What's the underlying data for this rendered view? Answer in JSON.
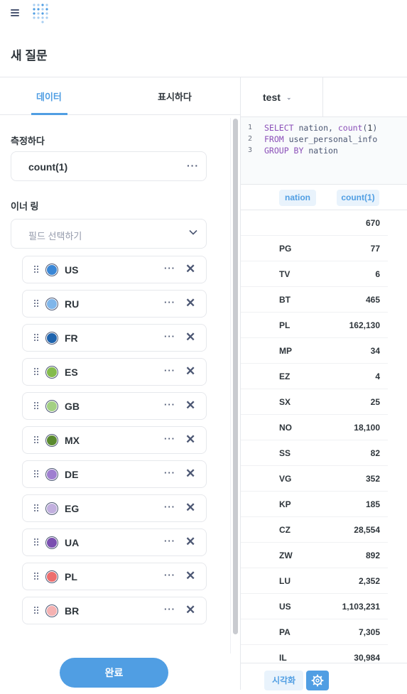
{
  "page": {
    "title": "새 질문"
  },
  "tabs": {
    "data": "데이터",
    "display": "표시하다"
  },
  "measure": {
    "label": "측정하다",
    "value": "count(1)",
    "more": "···"
  },
  "inner_ring": {
    "label": "이너 링",
    "placeholder": "필드 선택하기"
  },
  "items": [
    {
      "name": "US",
      "color": "#3a87d6"
    },
    {
      "name": "RU",
      "color": "#7fb6ea"
    },
    {
      "name": "FR",
      "color": "#1e63ad"
    },
    {
      "name": "ES",
      "color": "#84bb4c"
    },
    {
      "name": "GB",
      "color": "#a3d083"
    },
    {
      "name": "MX",
      "color": "#5a8a2f"
    },
    {
      "name": "DE",
      "color": "#9f7fd0"
    },
    {
      "name": "EG",
      "color": "#c2b0df"
    },
    {
      "name": "UA",
      "color": "#7a4fb0"
    },
    {
      "name": "PL",
      "color": "#ed6e6e"
    },
    {
      "name": "BR",
      "color": "#f5b2b2"
    }
  ],
  "item_more": "···",
  "item_remove": "✕",
  "done_button": "완료",
  "database": {
    "name": "test",
    "chevron": "⌄"
  },
  "sql": {
    "line_numbers": [
      "1",
      "2",
      "3"
    ],
    "lines": [
      {
        "kw": "SELECT",
        "rest1": " nation, ",
        "fn": "count",
        "rest2": "(",
        "num": "1",
        "rest3": ")"
      },
      {
        "kw": "FROM",
        "rest1": " user_personal_info"
      },
      {
        "kw": "GROUP BY",
        "rest1": " nation"
      }
    ]
  },
  "table": {
    "columns": [
      "nation",
      "count(1)"
    ],
    "rows": [
      [
        "",
        "670"
      ],
      [
        "PG",
        "77"
      ],
      [
        "TV",
        "6"
      ],
      [
        "BT",
        "465"
      ],
      [
        "PL",
        "162,130"
      ],
      [
        "MP",
        "34"
      ],
      [
        "EZ",
        "4"
      ],
      [
        "SX",
        "25"
      ],
      [
        "NO",
        "18,100"
      ],
      [
        "SS",
        "82"
      ],
      [
        "VG",
        "352"
      ],
      [
        "KP",
        "185"
      ],
      [
        "CZ",
        "28,554"
      ],
      [
        "ZW",
        "892"
      ],
      [
        "LU",
        "2,352"
      ],
      [
        "US",
        "1,103,231"
      ],
      [
        "PA",
        "7,305"
      ],
      [
        "IL",
        "30,984"
      ]
    ]
  },
  "viz_button": "시각화"
}
